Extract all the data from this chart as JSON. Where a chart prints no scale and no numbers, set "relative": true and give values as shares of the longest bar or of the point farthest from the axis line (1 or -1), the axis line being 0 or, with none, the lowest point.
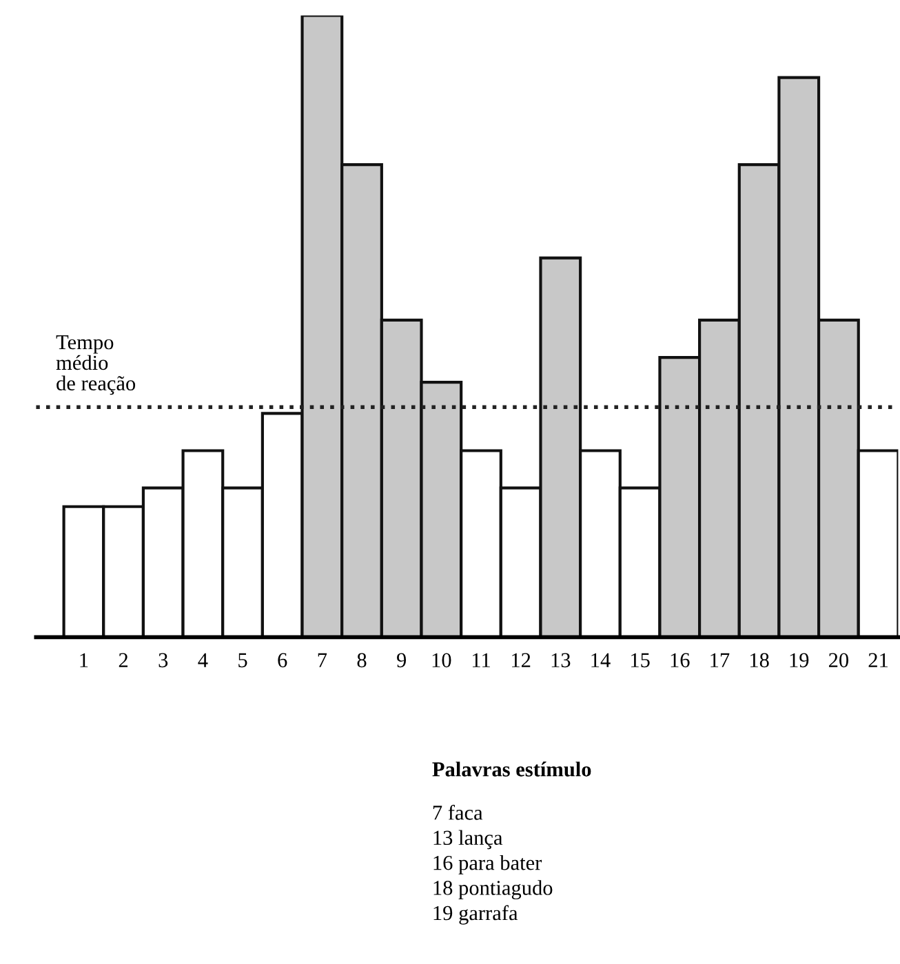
{
  "chart_data": {
    "type": "bar",
    "relative": true,
    "categories": [
      "1",
      "2",
      "3",
      "4",
      "5",
      "6",
      "7",
      "8",
      "9",
      "10",
      "11",
      "12",
      "13",
      "14",
      "15",
      "16",
      "17",
      "18",
      "19",
      "20",
      "21"
    ],
    "values": [
      0.21,
      0.21,
      0.24,
      0.3,
      0.24,
      0.36,
      1,
      0.76,
      0.51,
      0.41,
      0.3,
      0.24,
      0.61,
      0.3,
      0.24,
      0.45,
      0.51,
      0.76,
      0.9,
      0.51,
      0.3
    ],
    "colors": [
      "#ffffff",
      "#ffffff",
      "#ffffff",
      "#ffffff",
      "#ffffff",
      "#ffffff",
      "#c8c8c8",
      "#c8c8c8",
      "#c8c8c8",
      "#c8c8c8",
      "#ffffff",
      "#ffffff",
      "#c8c8c8",
      "#ffffff",
      "#ffffff",
      "#c8c8c8",
      "#c8c8c8",
      "#c8c8c8",
      "#c8c8c8",
      "#c8c8c8",
      "#ffffff"
    ],
    "ref_lines": [
      {
        "axis": "y",
        "value": 0.37,
        "label": "Tempo\nmédio\nde reação",
        "line_style": "dotted",
        "color": "#222222"
      }
    ],
    "annotations": [
      "Palavras estímulo",
      "7 faca",
      "13 lança",
      "16 para bater",
      "18 pontiagudo",
      "19 garrafa"
    ],
    "grid": false,
    "legend": false
  }
}
